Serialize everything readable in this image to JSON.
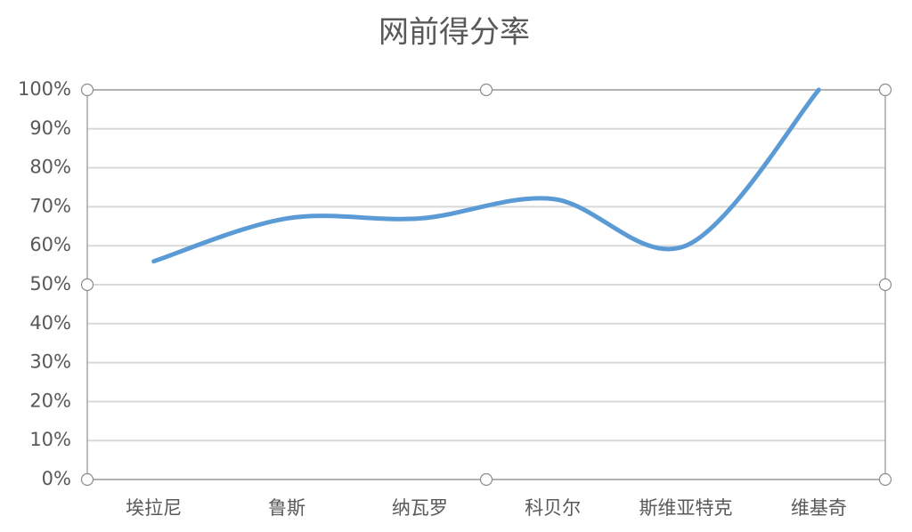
{
  "chart_data": {
    "type": "line",
    "title": "网前得分率",
    "categories": [
      "埃拉尼",
      "鲁斯",
      "纳瓦罗",
      "科贝尔",
      "斯维亚特克",
      "维基奇"
    ],
    "values": [
      56,
      67,
      67,
      72,
      60,
      100
    ],
    "color": "#5b9bd5",
    "smooth": true,
    "grid": true,
    "ylim": [
      0,
      100
    ],
    "yticks": [
      {
        "value": 0,
        "label": "0%"
      },
      {
        "value": 10,
        "label": "10%"
      },
      {
        "value": 20,
        "label": "20%"
      },
      {
        "value": 30,
        "label": "30%"
      },
      {
        "value": 40,
        "label": "40%"
      },
      {
        "value": 50,
        "label": "50%"
      },
      {
        "value": 60,
        "label": "60%"
      },
      {
        "value": 70,
        "label": "70%"
      },
      {
        "value": 80,
        "label": "80%"
      },
      {
        "value": 90,
        "label": "90%"
      },
      {
        "value": 100,
        "label": "100%"
      }
    ]
  }
}
